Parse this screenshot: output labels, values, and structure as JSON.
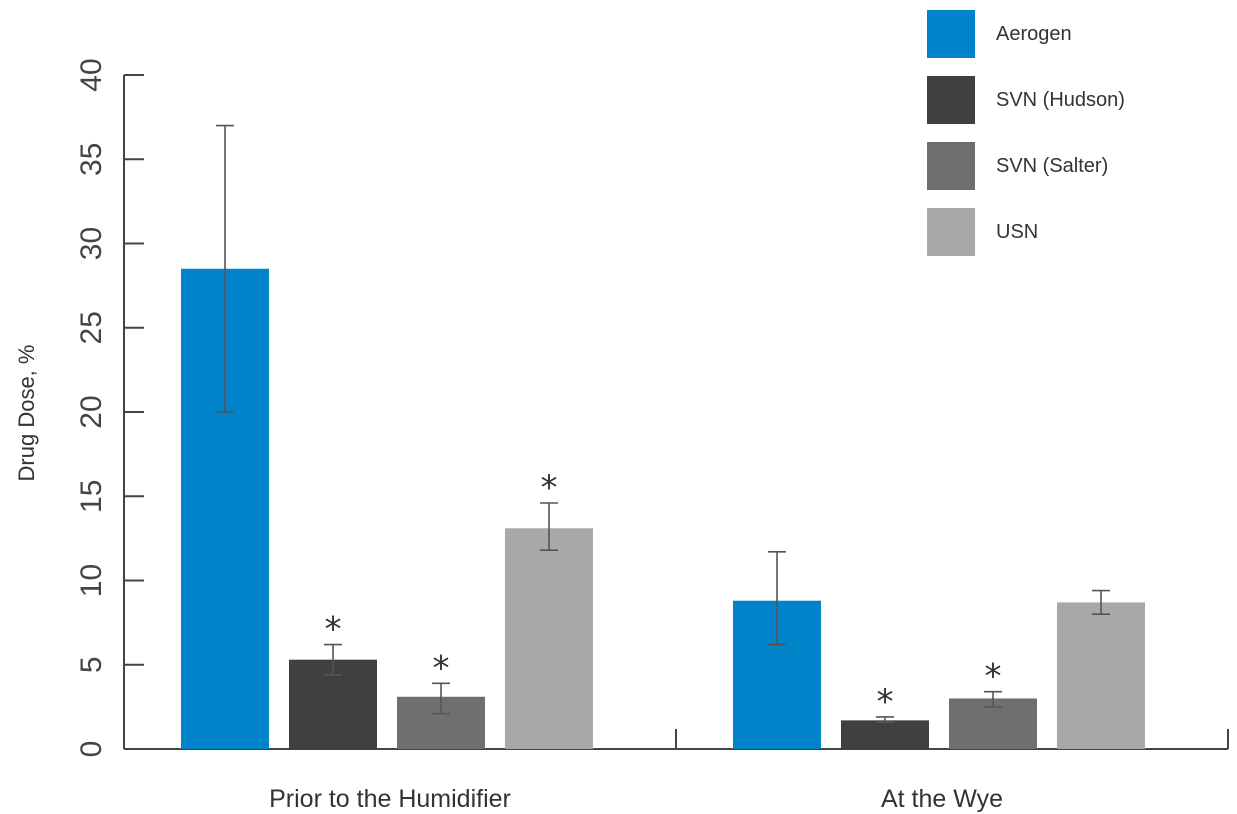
{
  "chart_data": {
    "type": "bar",
    "title": "",
    "xlabel": "",
    "ylabel": "Drug Dose, %",
    "ylim": [
      0,
      40
    ],
    "yticks": [
      0,
      5,
      10,
      15,
      20,
      25,
      30,
      35,
      40
    ],
    "categories": [
      "Prior to the Humidifier",
      "At the Wye"
    ],
    "legend_position": "top-right",
    "grid": false,
    "series": [
      {
        "name": "Aerogen",
        "color": "#0083C9",
        "values": [
          28.5,
          8.8
        ],
        "error_low": [
          20.0,
          6.2
        ],
        "error_high": [
          37.0,
          11.7
        ],
        "significant": [
          false,
          false
        ]
      },
      {
        "name": "SVN (Hudson)",
        "color": "#404040",
        "values": [
          5.3,
          1.7
        ],
        "error_low": [
          4.4,
          1.6
        ],
        "error_high": [
          6.2,
          1.9
        ],
        "significant": [
          true,
          true
        ]
      },
      {
        "name": "SVN (Salter)",
        "color": "#6E6F71",
        "values": [
          3.1,
          3.0
        ],
        "error_low": [
          2.1,
          2.5
        ],
        "error_high": [
          3.9,
          3.4
        ],
        "significant": [
          true,
          true
        ]
      },
      {
        "name": "USN",
        "color": "#A7A8AA",
        "values": [
          13.1,
          8.7
        ],
        "error_low": [
          11.8,
          8.0
        ],
        "error_high": [
          14.6,
          9.4
        ],
        "significant": [
          true,
          false
        ]
      }
    ],
    "significance_marker": "*"
  }
}
